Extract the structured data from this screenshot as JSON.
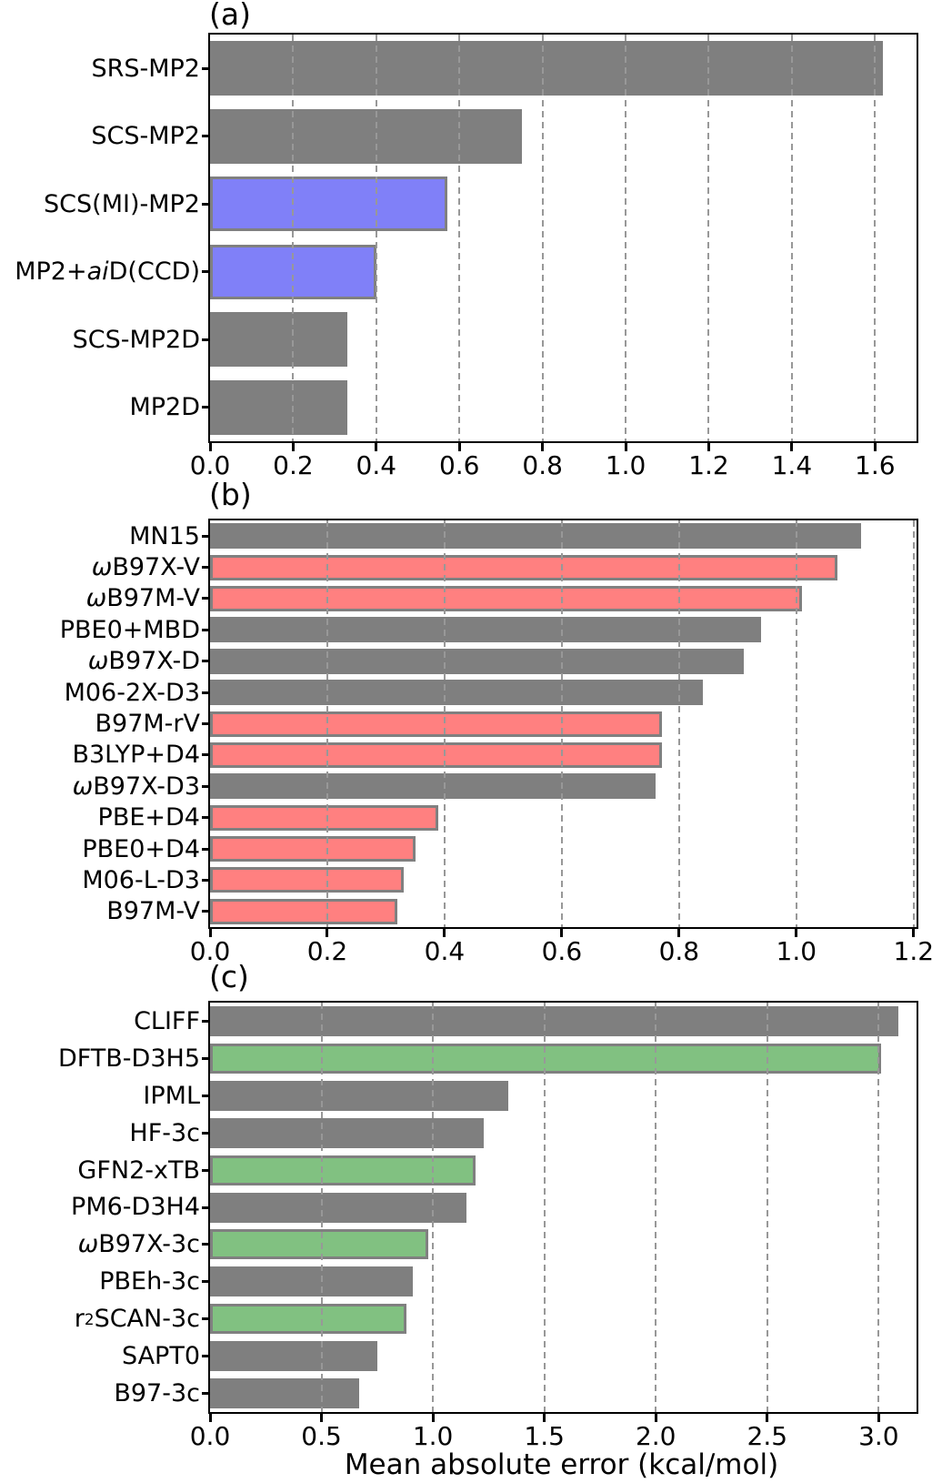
{
  "figure": {
    "xlabel": "Mean absolute error (kcal/mol)"
  },
  "palette": {
    "gray": "#7f7f7f",
    "blue": "#8080f8",
    "red": "#ff8080",
    "green": "#81c181",
    "bar_edge": "#808080",
    "grid": "#989898",
    "axis": "#000000",
    "background": "#ffffff"
  },
  "chart_data": [
    {
      "type": "bar",
      "orientation": "horizontal",
      "panel_label": "(a)",
      "categories": [
        "SRS-MP2",
        "SCS-MP2",
        "SCS(MI)-MP2",
        "MP2+*ai*D(CCD)",
        "SCS-MP2D",
        "MP2D"
      ],
      "values": [
        1.62,
        0.75,
        0.57,
        0.4,
        0.33,
        0.33
      ],
      "bar_colors": [
        "gray",
        "gray",
        "blue",
        "blue",
        "gray",
        "gray"
      ],
      "xlim": [
        0,
        1.7
      ],
      "xtick_values": [
        0.0,
        0.2,
        0.4,
        0.6,
        0.8,
        1.0,
        1.2,
        1.4,
        1.6
      ],
      "xtick_labels": [
        "0.0",
        "0.2",
        "0.4",
        "0.6",
        "0.8",
        "1.0",
        "1.2",
        "1.4",
        "1.6"
      ],
      "grid": {
        "axis": "x",
        "style": "dashed",
        "above_bars": true
      }
    },
    {
      "type": "bar",
      "orientation": "horizontal",
      "panel_label": "(b)",
      "categories": [
        "MN15",
        "*ω*B97X-V",
        "*ω*B97M-V",
        "PBE0+MBD",
        "*ω*B97X-D",
        "M06-2X-D3",
        "B97M-rV",
        "B3LYP+D4",
        "*ω*B97X-D3",
        "PBE+D4",
        "PBE0+D4",
        "M06-L-D3",
        "B97M-V"
      ],
      "values": [
        1.11,
        1.07,
        1.01,
        0.94,
        0.91,
        0.84,
        0.77,
        0.77,
        0.76,
        0.39,
        0.35,
        0.33,
        0.32
      ],
      "bar_colors": [
        "gray",
        "red",
        "red",
        "gray",
        "gray",
        "gray",
        "red",
        "red",
        "gray",
        "red",
        "red",
        "red",
        "red"
      ],
      "xlim": [
        0,
        1.205
      ],
      "xtick_values": [
        0.0,
        0.2,
        0.4,
        0.6,
        0.8,
        1.0,
        1.2
      ],
      "xtick_labels": [
        "0.0",
        "0.2",
        "0.4",
        "0.6",
        "0.8",
        "1.0",
        "1.2"
      ],
      "grid": {
        "axis": "x",
        "style": "dashed",
        "above_bars": true
      }
    },
    {
      "type": "bar",
      "orientation": "horizontal",
      "panel_label": "(c)",
      "categories": [
        "CLIFF",
        "DFTB-D3H5",
        "IPML",
        "HF-3c",
        "GFN2-xTB",
        "PM6-D3H4",
        "*ω*B97X-3c",
        "PBEh-3c",
        "r^2^SCAN-3c",
        "SAPT0",
        "B97-3c"
      ],
      "values": [
        3.09,
        3.01,
        1.34,
        1.23,
        1.19,
        1.15,
        0.98,
        0.91,
        0.88,
        0.75,
        0.67
      ],
      "bar_colors": [
        "gray",
        "green",
        "gray",
        "gray",
        "green",
        "gray",
        "green",
        "gray",
        "green",
        "gray",
        "gray"
      ],
      "xlim": [
        0,
        3.17
      ],
      "xtick_values": [
        0.0,
        0.5,
        1.0,
        1.5,
        2.0,
        2.5,
        3.0
      ],
      "xtick_labels": [
        "0.0",
        "0.5",
        "1.0",
        "1.5",
        "2.0",
        "2.5",
        "3.0"
      ],
      "xlabel": "Mean absolute error (kcal/mol)",
      "grid": {
        "axis": "x",
        "style": "dashed",
        "above_bars": true
      }
    }
  ]
}
